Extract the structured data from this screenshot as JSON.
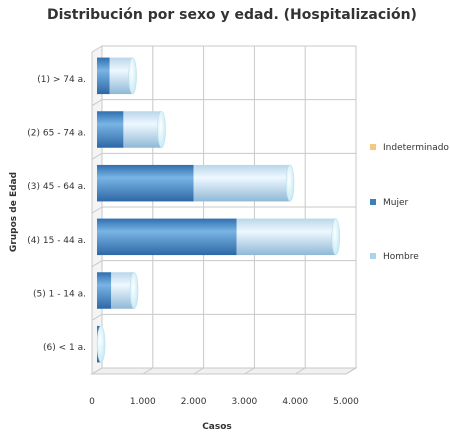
{
  "chart_data": {
    "type": "bar",
    "orientation": "horizontal",
    "stacked": true,
    "style": "3d-cylinder",
    "title": "Distribución por sexo y edad. (Hospitalización)",
    "xlabel": "Casos",
    "ylabel": "Grupos de Edad",
    "categories": [
      "(1) > 74 a.",
      "(2) 65 - 74 a.",
      "(3) 45 - 64 a.",
      "(4) 15 - 44 a.",
      "(5) 1 - 14 a.",
      "(6) < 1 a."
    ],
    "series": [
      {
        "name": "Indeterminado",
        "color": "#f5c880",
        "values": [
          0,
          0,
          0,
          0,
          0,
          0
        ]
      },
      {
        "name": "Mujer",
        "color": "#3a7fc0",
        "values": [
          250,
          520,
          1900,
          2750,
          280,
          50
        ]
      },
      {
        "name": "Hombre",
        "color": "#a9d3ef",
        "values": [
          450,
          750,
          1900,
          1950,
          450,
          30
        ]
      }
    ],
    "xlim": [
      0,
      5000
    ],
    "xticks": [
      0,
      1000,
      2000,
      3000,
      4000,
      5000
    ],
    "xtick_labels": [
      "0",
      "1.000",
      "2.000",
      "3.000",
      "4.000",
      "5.000"
    ],
    "grid": true,
    "legend_position": "right"
  }
}
